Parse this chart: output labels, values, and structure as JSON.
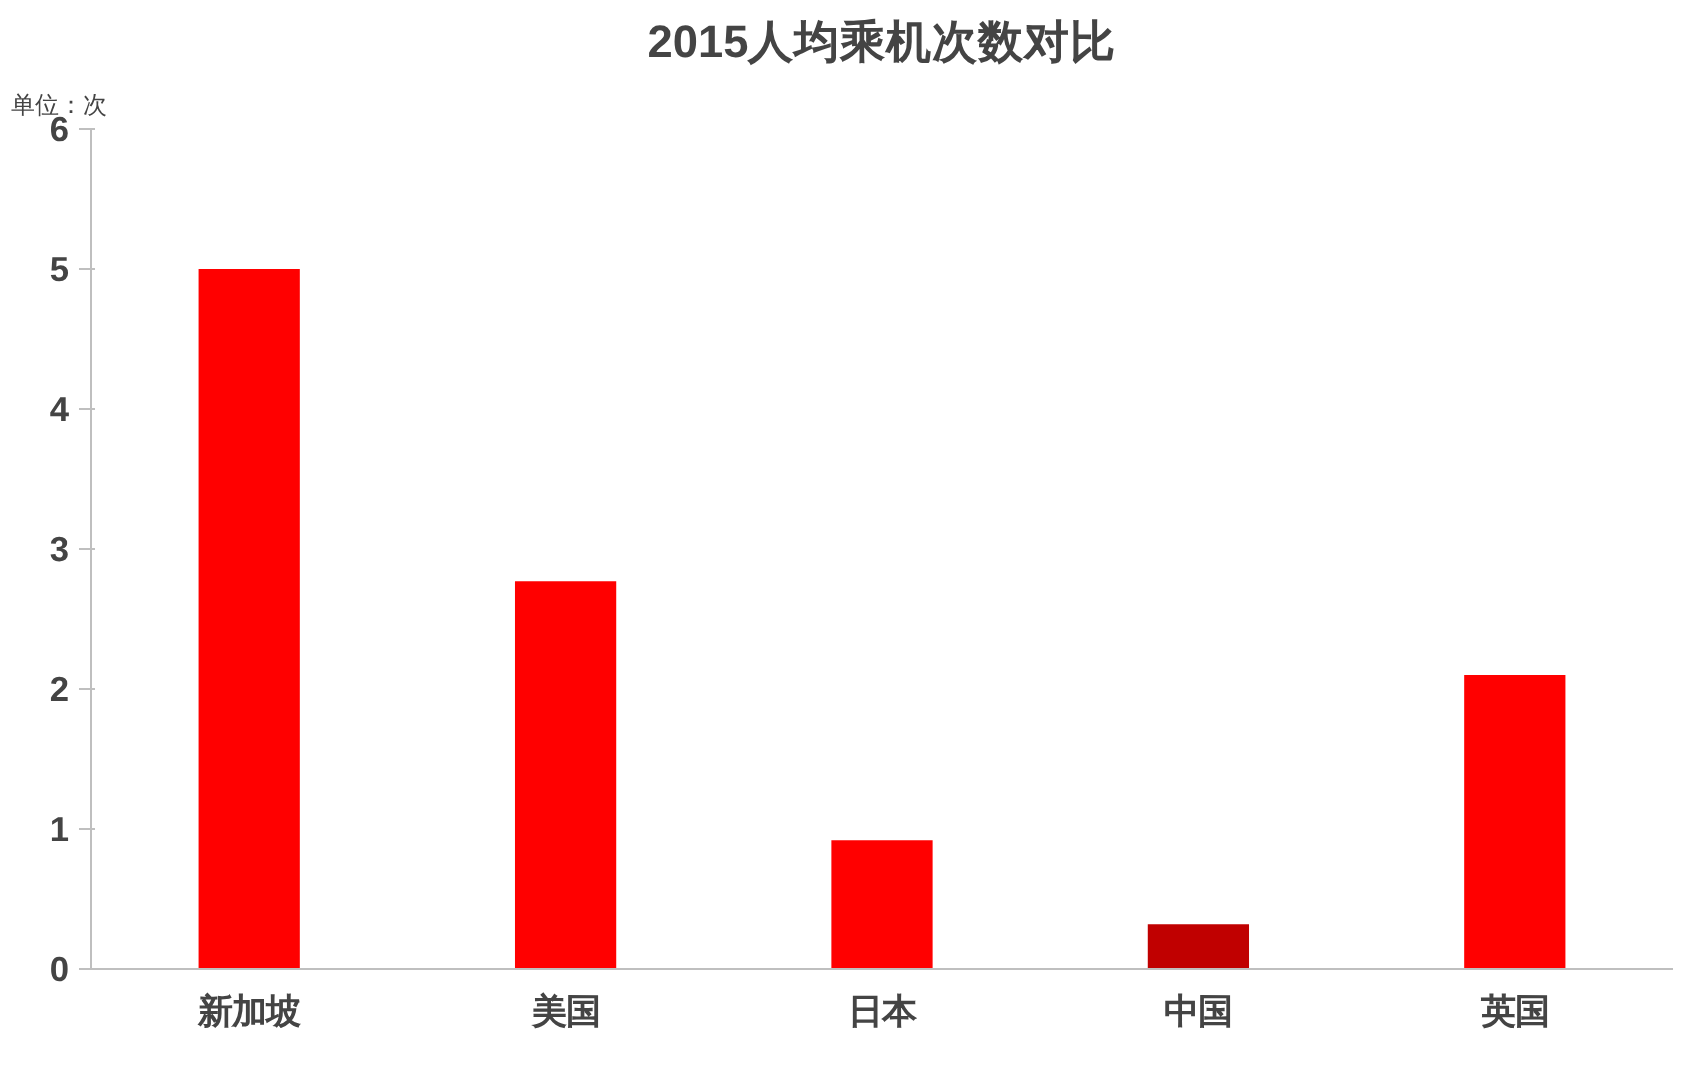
{
  "chart_data": {
    "type": "bar",
    "title": "2015人均乘机次数对比",
    "annotations": [
      "单位：次"
    ],
    "categories": [
      "新加坡",
      "美国",
      "日本",
      "中国",
      "英国"
    ],
    "values": [
      5.0,
      2.77,
      0.92,
      0.32,
      2.1
    ],
    "colors": [
      "#ff0000",
      "#ff0000",
      "#ff0000",
      "#c00000",
      "#ff0000"
    ],
    "ylim": [
      0,
      6
    ],
    "yticks": [
      0,
      1,
      2,
      3,
      4,
      5,
      6
    ],
    "grid": false
  }
}
